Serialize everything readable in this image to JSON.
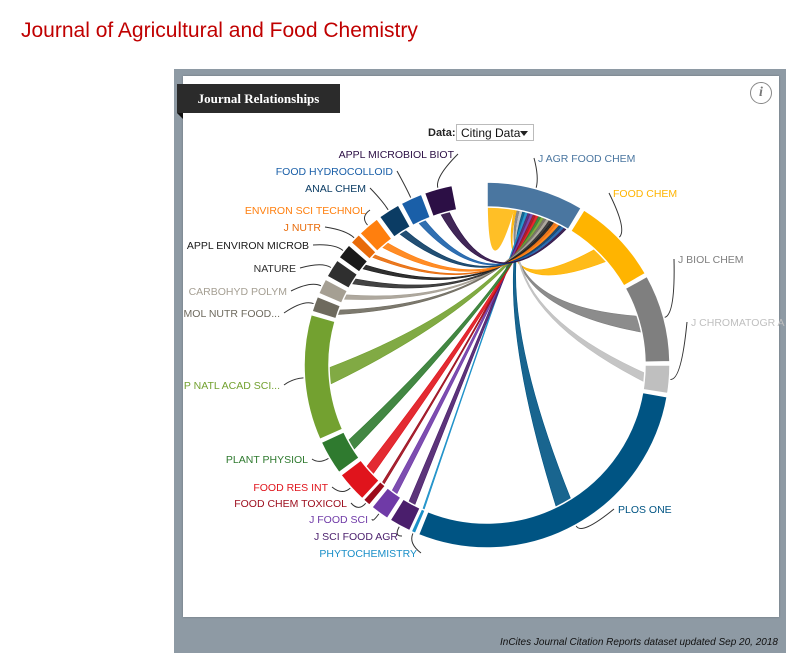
{
  "page": {
    "title": "Journal of Agricultural and Food Chemistry"
  },
  "panel": {
    "title": "Journal Relationships",
    "info_icon": "i",
    "data_label": "Data:",
    "data_select_value": "Citing Data",
    "footer": "InCites Journal Citation Reports dataset updated Sep 20, 2018"
  },
  "chart_data": {
    "type": "chord",
    "title": "Journal Relationships",
    "source_journal": "J AGR FOOD CHEM",
    "data_mode": "Citing Data",
    "segments": [
      {
        "name": "J AGR FOOD CHEM",
        "start_deg": 0,
        "end_deg": 31,
        "color": "#4a76a0"
      },
      {
        "name": "FOOD CHEM",
        "start_deg": 32,
        "end_deg": 60,
        "color": "#ffb400"
      },
      {
        "name": "J BIOL CHEM",
        "start_deg": 61,
        "end_deg": 89,
        "color": "#7f7f7f"
      },
      {
        "name": "J CHROMATOGR A",
        "start_deg": 90,
        "end_deg": 99,
        "color": "#bfbfbf"
      },
      {
        "name": "PLOS ONE",
        "start_deg": 100,
        "end_deg": 202,
        "color": "#005483"
      },
      {
        "name": "PHYTOCHEMISTRY",
        "start_deg": 203,
        "end_deg": 204.5,
        "color": "#1a8fc8"
      },
      {
        "name": "J SCI FOOD AGR",
        "start_deg": 205,
        "end_deg": 212,
        "color": "#4a1e6c"
      },
      {
        "name": "J FOOD SCI",
        "start_deg": 213,
        "end_deg": 219,
        "color": "#6f3aa7"
      },
      {
        "name": "FOOD CHEM TOXICOL",
        "start_deg": 220,
        "end_deg": 222.5,
        "color": "#9c0c1c"
      },
      {
        "name": "FOOD RES INT",
        "start_deg": 223,
        "end_deg": 233,
        "color": "#e0141c"
      },
      {
        "name": "PLANT PHYSIOL",
        "start_deg": 234,
        "end_deg": 245,
        "color": "#2f7a2f"
      },
      {
        "name": "P NATL ACAD SCI...",
        "start_deg": 246,
        "end_deg": 286,
        "color": "#73a130"
      },
      {
        "name": "MOL NUTR FOOD...",
        "start_deg": 287,
        "end_deg": 292,
        "color": "#6e6a5e"
      },
      {
        "name": "CARBOHYD POLYM",
        "start_deg": 293,
        "end_deg": 298,
        "color": "#a59f93"
      },
      {
        "name": "NATURE",
        "start_deg": 299,
        "end_deg": 305,
        "color": "#2f2f2f"
      },
      {
        "name": "APPL ENVIRON MICROB",
        "start_deg": 306,
        "end_deg": 311,
        "color": "#1a1a1a"
      },
      {
        "name": "J NUTR",
        "start_deg": 312,
        "end_deg": 315.5,
        "color": "#e86b0a"
      },
      {
        "name": "ENVIRON SCI TECHNOL",
        "start_deg": 316,
        "end_deg": 323,
        "color": "#ff7f0e"
      },
      {
        "name": "ANAL CHEM",
        "start_deg": 324,
        "end_deg": 331,
        "color": "#0b3c64"
      },
      {
        "name": "FOOD HYDROCOLLOID",
        "start_deg": 332,
        "end_deg": 339,
        "color": "#1a5fa8"
      },
      {
        "name": "APPL MICROBIOL BIOT",
        "start_deg": 340,
        "end_deg": 349,
        "color": "#2c0f45"
      }
    ]
  }
}
